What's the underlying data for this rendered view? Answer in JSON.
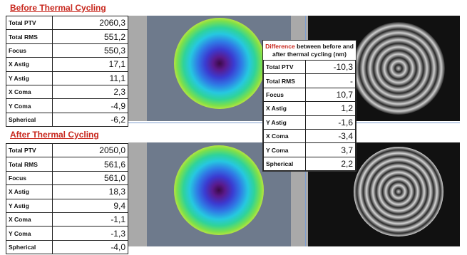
{
  "before": {
    "title": "Before Thermal Cycling",
    "rows": [
      {
        "label": "Total PTV",
        "value": "2060,3"
      },
      {
        "label": "Total RMS",
        "value": "551,2"
      },
      {
        "label": "Focus",
        "value": "550,3"
      },
      {
        "label": "X Astig",
        "value": "17,1"
      },
      {
        "label": "Y Astig",
        "value": "11,1"
      },
      {
        "label": "X Coma",
        "value": "2,3"
      },
      {
        "label": "Y Coma",
        "value": "-4,9"
      },
      {
        "label": "Spherical",
        "value": "-6,2"
      }
    ]
  },
  "after": {
    "title": "After Thermal Cycling",
    "rows": [
      {
        "label": "Total PTV",
        "value": "2050,0"
      },
      {
        "label": "Total RMS",
        "value": "561,6"
      },
      {
        "label": "Focus",
        "value": "561,0"
      },
      {
        "label": "X Astig",
        "value": "18,3"
      },
      {
        "label": "Y Astig",
        "value": "9,4"
      },
      {
        "label": "X Coma",
        "value": "-1,1"
      },
      {
        "label": "Y Coma",
        "value": "-1,3"
      },
      {
        "label": "Spherical",
        "value": "-4,0"
      }
    ]
  },
  "difference": {
    "title_red": "Difference",
    "title_rest": "between before and after thermal cycling (nm)",
    "rows": [
      {
        "label": "Total PTV",
        "value": "-10,3"
      },
      {
        "label": "Total RMS",
        "value": "-"
      },
      {
        "label": "Focus",
        "value": "10,7"
      },
      {
        "label": "X Astig",
        "value": "1,2"
      },
      {
        "label": "Y Astig",
        "value": "-1,6"
      },
      {
        "label": "X Coma",
        "value": "-3,4"
      },
      {
        "label": "Y Coma",
        "value": "3,7"
      },
      {
        "label": "Spherical",
        "value": "2,2"
      }
    ]
  },
  "colors": {
    "title_red": "#c8281e",
    "panel_gray": "#a9a9a9",
    "sim_background": "#6e7a8c",
    "interferogram_background": "#111111"
  }
}
